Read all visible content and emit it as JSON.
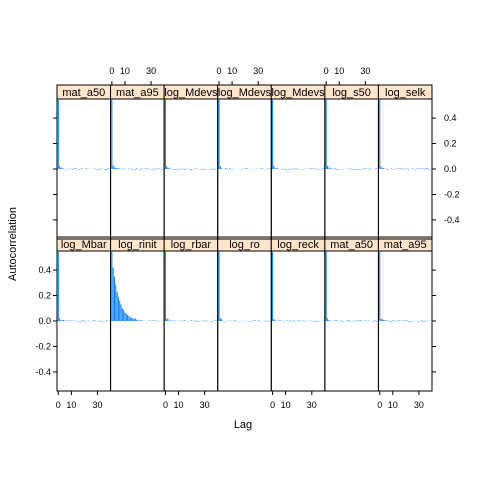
{
  "chart_data": {
    "type": "bar",
    "xlabel": "Lag",
    "ylabel": "Autocorrelation",
    "xlim": [
      -1,
      40
    ],
    "ylim": [
      -0.55,
      0.55
    ],
    "x_ticks": [
      0,
      10,
      30
    ],
    "x_tick_labels": [
      "0",
      "10",
      "30"
    ],
    "y_ticks": [
      -0.4,
      -0.2,
      0.0,
      0.2,
      0.4
    ],
    "y_tick_labels": [
      "-0.4",
      "-0.2",
      "0.0",
      "0.2",
      "0.4"
    ],
    "series_color": "#0080ff",
    "strip_color": "#ffe5cc",
    "grid": false,
    "layout": {
      "columns": 7,
      "rows": 2
    },
    "panels": [
      {
        "label": "log_Mbar",
        "row": 0,
        "col": 0,
        "lag1": 0.02,
        "decay": 0.5,
        "noise": 0.006
      },
      {
        "label": "log_rinit",
        "row": 0,
        "col": 1,
        "lag1": 0.42,
        "decay": 0.82,
        "noise": 0.006
      },
      {
        "label": "log_rbar",
        "row": 0,
        "col": 2,
        "lag1": 0.02,
        "decay": 0.5,
        "noise": 0.006
      },
      {
        "label": "log_ro",
        "row": 0,
        "col": 3,
        "lag1": 0.02,
        "decay": 0.5,
        "noise": 0.006
      },
      {
        "label": "log_reck",
        "row": 0,
        "col": 4,
        "lag1": 0.02,
        "decay": 0.5,
        "noise": 0.006
      },
      {
        "label": "mat_a50",
        "row": 0,
        "col": 5,
        "lag1": 0.02,
        "decay": 0.5,
        "noise": 0.006
      },
      {
        "label": "mat_a95",
        "row": 0,
        "col": 6,
        "lag1": 0.02,
        "decay": 0.5,
        "noise": 0.006
      },
      {
        "label": "mat_a50",
        "row": 1,
        "col": 0,
        "lag1": 0.02,
        "decay": 0.5,
        "noise": 0.006
      },
      {
        "label": "mat_a95",
        "row": 1,
        "col": 1,
        "lag1": 0.02,
        "decay": 0.5,
        "noise": 0.006
      },
      {
        "label": "log_Mdevs",
        "row": 1,
        "col": 2,
        "lag1": 0.02,
        "decay": 0.5,
        "noise": 0.006
      },
      {
        "label": "log_Mdevs",
        "row": 1,
        "col": 3,
        "lag1": 0.02,
        "decay": 0.5,
        "noise": 0.006
      },
      {
        "label": "log_Mdevs",
        "row": 1,
        "col": 4,
        "lag1": 0.02,
        "decay": 0.5,
        "noise": 0.006
      },
      {
        "label": "log_s50",
        "row": 1,
        "col": 5,
        "lag1": 0.02,
        "decay": 0.5,
        "noise": 0.006
      },
      {
        "label": "log_selk",
        "row": 1,
        "col": 6,
        "lag1": 0.02,
        "decay": 0.5,
        "noise": 0.006
      }
    ]
  }
}
